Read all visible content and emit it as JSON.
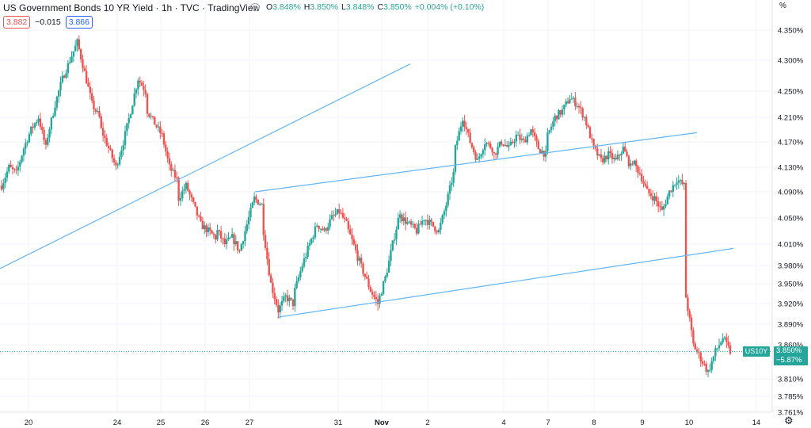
{
  "header": {
    "title": "US Government Bonds 10 YR Yield · 1h · TVC · TradingView",
    "ohlc": [
      {
        "k": "O",
        "v": "3.848%"
      },
      {
        "k": "H",
        "v": "3.850%"
      },
      {
        "k": "L",
        "v": "3.848%"
      },
      {
        "k": "C",
        "v": "3.850%"
      }
    ],
    "change": "+0.004% (+0.10%)",
    "bid": "3.882",
    "spread": "−0.015",
    "ask": "3.866"
  },
  "axis": {
    "unit": "%",
    "settings_icon": "gear-icon"
  },
  "colors": {
    "up": "#26a69a",
    "down": "#ef5350",
    "trendline": "#64b5f6",
    "grid": "#f0f3fa",
    "axis_text": "#131722"
  },
  "last_price": {
    "symbol": "US10Y",
    "value": "3.850%",
    "change": "−5.87%"
  },
  "chart_data": {
    "type": "candlestick",
    "title": "US Government Bonds 10 YR Yield · 1h · TVC",
    "x_ticks": [
      "20",
      "24",
      "25",
      "26",
      "27",
      "31",
      "Nov",
      "2",
      "4",
      "7",
      "8",
      "9",
      "10",
      "14"
    ],
    "y_ticks": [
      "4.350%",
      "4.300%",
      "4.250%",
      "4.210%",
      "4.170%",
      "4.130%",
      "4.090%",
      "4.050%",
      "4.010%",
      "3.980%",
      "3.950%",
      "3.920%",
      "3.890%",
      "3.860%",
      "3.810%",
      "3.785%",
      "3.761%"
    ],
    "ylim": [
      3.761,
      4.38
    ],
    "y_scale": "log",
    "grid": true,
    "last_value": 3.85,
    "series": [
      {
        "date": "20",
        "close_path": [
          4.1,
          4.13,
          4.12,
          4.16,
          4.19,
          4.21,
          4.16
        ]
      },
      {
        "date": "21",
        "close_path": [
          4.18,
          4.23,
          4.27,
          4.3,
          4.33,
          4.28,
          4.23,
          4.21
        ]
      },
      {
        "date": "24",
        "close_path": [
          4.19,
          4.16,
          4.13,
          4.17,
          4.22,
          4.27,
          4.25
        ]
      },
      {
        "date": "25",
        "close_path": [
          4.22,
          4.2,
          4.18,
          4.13,
          4.11
        ]
      },
      {
        "date": "26",
        "close_path": [
          4.08,
          4.1,
          4.07,
          4.04,
          4.03,
          4.02
        ]
      },
      {
        "date": "27",
        "close_path": [
          4.03,
          4.01,
          4.02,
          4.0,
          4.04,
          4.08,
          4.07
        ]
      },
      {
        "date": "28",
        "close_path": [
          4.03,
          3.95,
          3.91,
          3.93,
          3.92
        ]
      },
      {
        "date": "31",
        "close_path": [
          3.94,
          3.98,
          4.01,
          4.04,
          4.03,
          4.05,
          4.06,
          4.04
        ]
      },
      {
        "date": "Nov",
        "close_path": [
          4.03,
          4.0,
          3.97,
          3.94,
          3.92,
          3.96,
          4.01,
          4.06
        ]
      },
      {
        "date": "2",
        "close_path": [
          4.05,
          4.04,
          4.03,
          4.05,
          4.04,
          4.03,
          4.07,
          4.12
        ]
      },
      {
        "date": "3",
        "close_path": [
          4.16,
          4.21,
          4.17,
          4.14,
          4.17,
          4.16
        ]
      },
      {
        "date": "4",
        "close_path": [
          4.15,
          4.17,
          4.16,
          4.18,
          4.17,
          4.19,
          4.16,
          4.15
        ]
      },
      {
        "date": "7",
        "close_path": [
          4.18,
          4.21,
          4.22,
          4.24,
          4.23,
          4.21
        ]
      },
      {
        "date": "8",
        "close_path": [
          4.2,
          4.16,
          4.14,
          4.15,
          4.14,
          4.16,
          4.13
        ]
      },
      {
        "date": "9",
        "close_path": [
          4.14,
          4.12,
          4.09,
          4.08,
          4.06,
          4.09,
          4.11,
          4.1
        ]
      },
      {
        "date": "10",
        "close_path": [
          3.93,
          3.86,
          3.84,
          3.82,
          3.85,
          3.87,
          3.85
        ]
      }
    ],
    "trendlines": [
      {
        "from": {
          "x": "19",
          "y": 3.975
        },
        "to": {
          "x": "Nov",
          "y": 4.294
        }
      },
      {
        "from": {
          "x": "27",
          "y": 4.09
        },
        "to": {
          "x": "10",
          "y": 4.185
        }
      },
      {
        "from": {
          "x": "28",
          "y": 3.9
        },
        "to": {
          "x": "11",
          "y": 4.004
        }
      }
    ]
  }
}
